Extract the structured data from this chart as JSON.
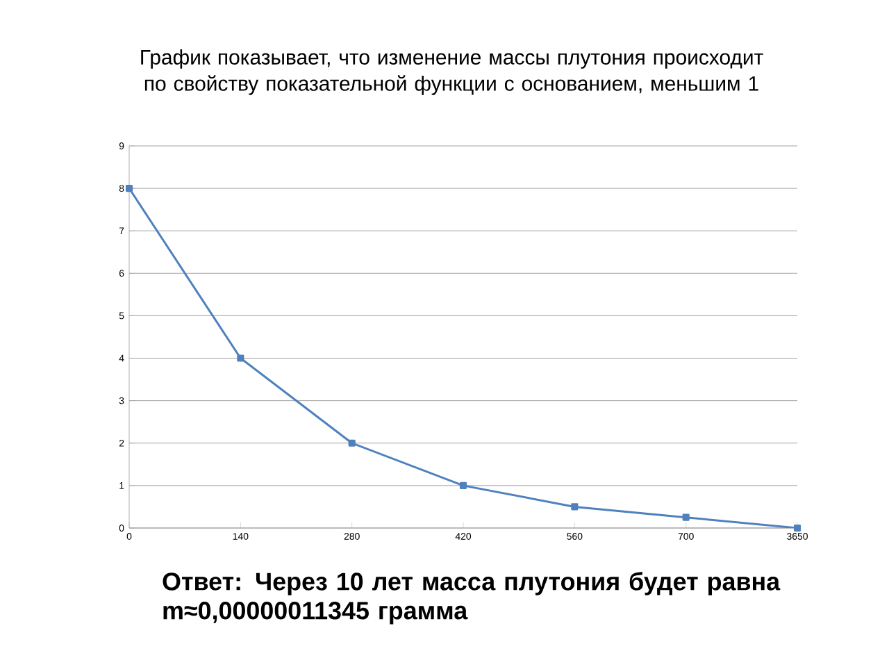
{
  "chart_data": {
    "type": "line",
    "title": "График показывает, что изменение массы плутония  происходит по свойству показательной функции с основанием, меньшим 1",
    "categories": [
      "0",
      "140",
      "280",
      "420",
      "560",
      "700",
      "3650"
    ],
    "series": [
      {
        "color": "#4f81bd",
        "values": [
          8,
          4,
          2,
          1,
          0.5,
          0.25,
          0
        ]
      }
    ],
    "ylim": [
      0,
      9
    ],
    "yticks": [
      0,
      1,
      2,
      3,
      4,
      5,
      6,
      7,
      8,
      9
    ],
    "grid": "y",
    "marker": "square",
    "line_style": "solid",
    "annotations": [
      "Ответ: Через 10 лет масса плутония будет равна m≈0,00000011345 грамма"
    ]
  }
}
